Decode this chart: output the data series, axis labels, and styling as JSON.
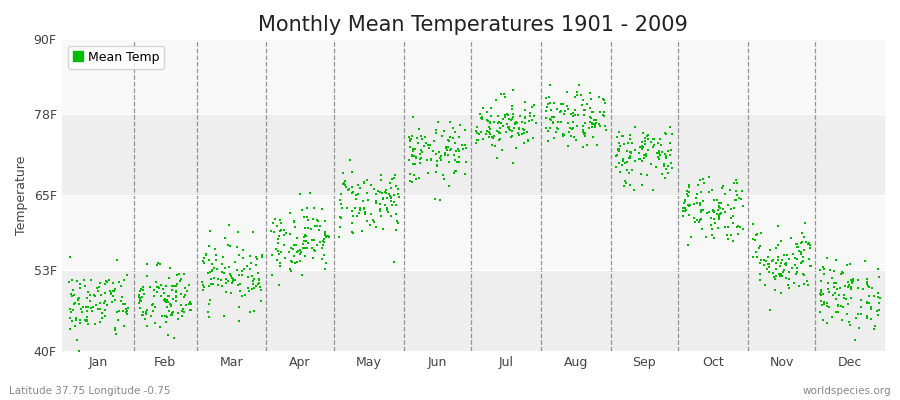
{
  "title": "Monthly Mean Temperatures 1901 - 2009",
  "ylabel": "Temperature",
  "xlabel_lat_lon": "Latitude 37.75 Longitude -0.75",
  "watermark": "worldspecies.org",
  "ytick_labels": [
    "40F",
    "53F",
    "65F",
    "78F",
    "90F"
  ],
  "ytick_values": [
    40,
    53,
    65,
    78,
    90
  ],
  "xtick_months": [
    "Jan",
    "Feb",
    "Mar",
    "Apr",
    "May",
    "Jun",
    "Jul",
    "Aug",
    "Sep",
    "Oct",
    "Nov",
    "Dec"
  ],
  "ylim": [
    40,
    90
  ],
  "xlim": [
    0,
    366
  ],
  "dot_color": "#00bb00",
  "bg_color": "#ffffff",
  "plot_bg_color": "#f5f5f5",
  "band_color1": "#eeeeee",
  "band_color2": "#f8f8f8",
  "legend_label": "Mean Temp",
  "title_fontsize": 15,
  "label_fontsize": 9,
  "tick_fontsize": 9,
  "n_years": 109,
  "seed": 42,
  "monthly_mean_temps_F": [
    47.5,
    48.0,
    52.5,
    58.0,
    64.0,
    71.5,
    76.5,
    77.0,
    71.5,
    63.0,
    54.5,
    49.0
  ],
  "monthly_std_F": [
    2.8,
    2.8,
    2.8,
    2.8,
    2.8,
    2.5,
    2.2,
    2.2,
    2.5,
    2.8,
    2.8,
    2.8
  ],
  "dot_size": 3,
  "month_starts": [
    1,
    32,
    60,
    91,
    121,
    152,
    182,
    213,
    244,
    274,
    305,
    335
  ],
  "month_lengths": [
    31,
    28,
    31,
    30,
    31,
    30,
    31,
    31,
    30,
    31,
    30,
    31
  ]
}
